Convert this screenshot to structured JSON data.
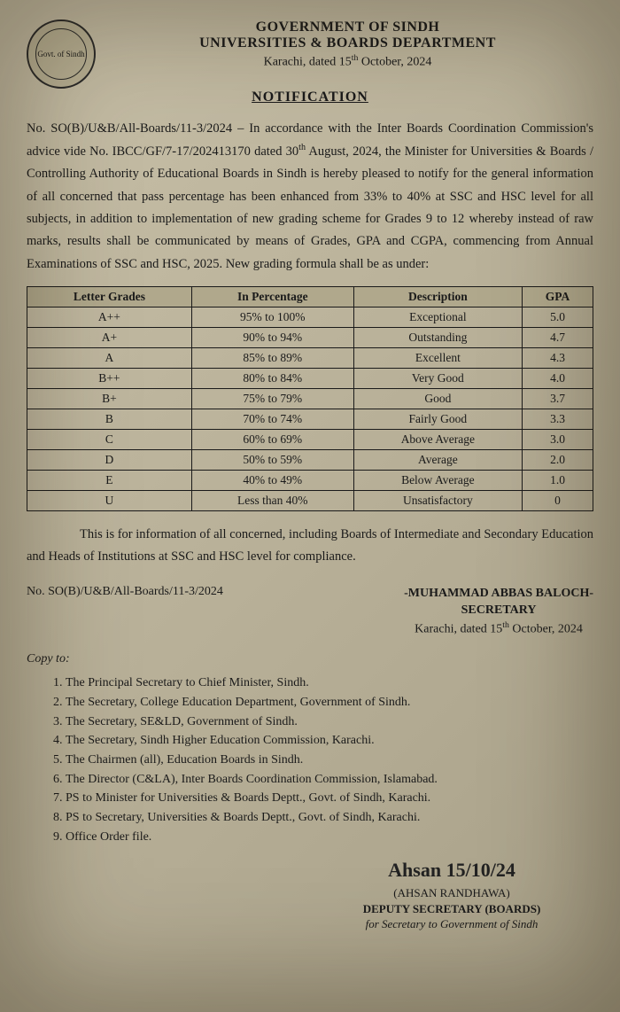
{
  "header": {
    "gov": "GOVERNMENT OF SINDH",
    "dept": "UNIVERSITIES & BOARDS DEPARTMENT",
    "place": "Karachi, dated 15",
    "place_suffix": " October, 2024",
    "emblem_label": "Govt. of Sindh"
  },
  "title": "NOTIFICATION",
  "ref_no": "No. SO(B)/U&B/All-Boards/11-3/2024",
  "body": "In accordance with the Inter Boards Coordination Commission's advice vide No. IBCC/GF/7-17/202413170 dated 30",
  "body2": " August, 2024, the Minister for Universities & Boards / Controlling Authority of Educational Boards in Sindh is hereby pleased to notify for the general information of all concerned that pass percentage has been enhanced from 33% to 40% at SSC and HSC level for all subjects, in addition to implementation of new grading scheme for Grades 9 to 12 whereby instead of raw marks, results shall be communicated by means of Grades, GPA and CGPA, commencing from Annual Examinations of SSC and HSC, 2025. New grading formula shall be as under:",
  "table": {
    "columns": [
      "Letter Grades",
      "In Percentage",
      "Description",
      "GPA"
    ],
    "rows": [
      [
        "A++",
        "95% to 100%",
        "Exceptional",
        "5.0"
      ],
      [
        "A+",
        "90% to 94%",
        "Outstanding",
        "4.7"
      ],
      [
        "A",
        "85% to 89%",
        "Excellent",
        "4.3"
      ],
      [
        "B++",
        "80% to 84%",
        "Very Good",
        "4.0"
      ],
      [
        "B+",
        "75% to 79%",
        "Good",
        "3.7"
      ],
      [
        "B",
        "70% to 74%",
        "Fairly Good",
        "3.3"
      ],
      [
        "C",
        "60% to 69%",
        "Above Average",
        "3.0"
      ],
      [
        "D",
        "50% to 59%",
        "Average",
        "2.0"
      ],
      [
        "E",
        "40% to 49%",
        "Below Average",
        "1.0"
      ],
      [
        "U",
        "Less than 40%",
        "Unsatisfactory",
        "0"
      ]
    ]
  },
  "footer_para": "This is for information of all concerned, including Boards of Intermediate and Secondary Education and Heads of Institutions at SSC and HSC level for compliance.",
  "secretary": {
    "name": "-MUHAMMAD ABBAS BALOCH-",
    "title": "SECRETARY",
    "place": "Karachi, dated 15",
    "place_suffix": " October, 2024"
  },
  "ref_no_2": "No. SO(B)/U&B/All-Boards/11-3/2024",
  "copy_title": "Copy to:",
  "copy_list": [
    "The Principal Secretary to Chief Minister, Sindh.",
    "The Secretary, College Education Department, Government of Sindh.",
    "The Secretary, SE&LD, Government of Sindh.",
    "The Secretary, Sindh Higher Education Commission, Karachi.",
    "The Chairmen (all), Education Boards in Sindh.",
    "The Director (C&LA), Inter Boards Coordination Commission, Islamabad.",
    "PS to Minister for Universities & Boards Deptt., Govt. of Sindh, Karachi.",
    "PS to Secretary, Universities & Boards Deptt., Govt. of Sindh, Karachi.",
    "Office Order file."
  ],
  "bottom_sig": {
    "scrawl": "Ahsan 15/10/24",
    "name": "(AHSAN RANDHAWA)",
    "title": "DEPUTY SECRETARY (BOARDS)",
    "for": "for Secretary to Government of Sindh"
  }
}
